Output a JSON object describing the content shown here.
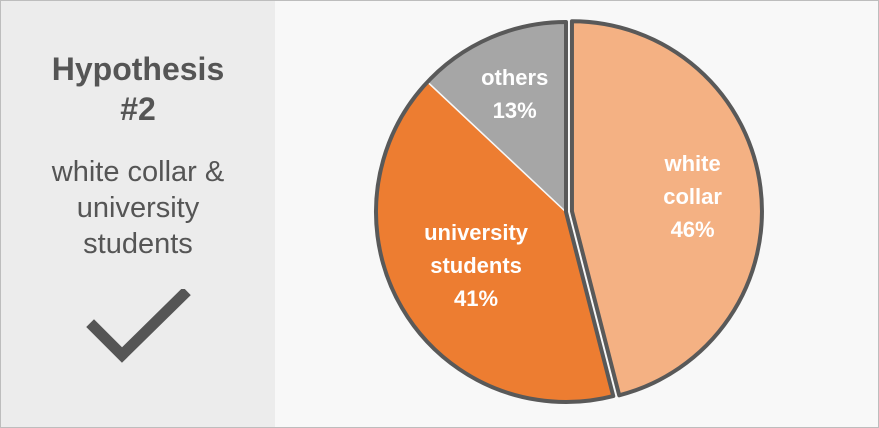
{
  "hypothesis": {
    "title": "Hypothesis\n#2",
    "description": "white collar &\nuniversity\nstudents",
    "check_icon": "checkmark-icon"
  },
  "chart_data": {
    "type": "pie",
    "slices": [
      {
        "label": [
          "white",
          "collar",
          "46%"
        ],
        "value": 46,
        "color": "#f4b183",
        "exploded": true
      },
      {
        "label": [
          "university",
          "students",
          "41%"
        ],
        "value": 41,
        "color": "#ed7d31",
        "exploded": false
      },
      {
        "label": [
          "others",
          "13%"
        ],
        "value": 13,
        "color": "#a6a6a6",
        "exploded": false
      }
    ],
    "start_angle_deg": 0,
    "direction": "clockwise",
    "outline_color": "#595959"
  }
}
